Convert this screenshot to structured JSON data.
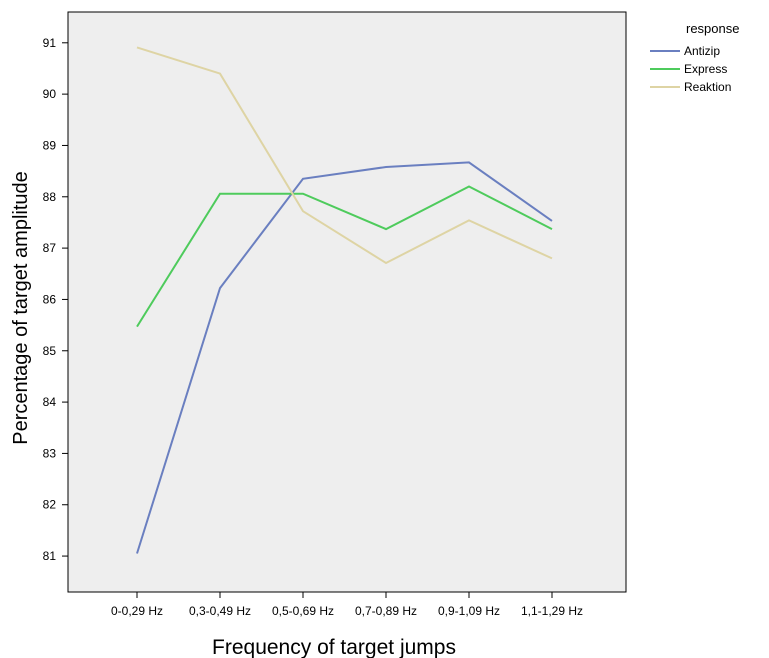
{
  "chart_data": {
    "type": "line",
    "title": "",
    "xlabel": "Frequency of target jumps",
    "ylabel": "Percentage of target amplitude",
    "categories": [
      "0-0,29 Hz",
      "0,3-0,49 Hz",
      "0,5-0,69 Hz",
      "0,7-0,89 Hz",
      "0,9-1,09 Hz",
      "1,1-1,29 Hz"
    ],
    "ylim": [
      80.3,
      91.6
    ],
    "yticks": [
      81,
      82,
      83,
      84,
      85,
      86,
      87,
      88,
      89,
      90,
      91
    ],
    "grid": false,
    "legend": {
      "title": "response",
      "placement": "right"
    },
    "series": [
      {
        "name": "Antizip",
        "color": "#6a7fc0",
        "values": [
          81.05,
          86.22,
          88.35,
          88.58,
          88.67,
          87.53
        ]
      },
      {
        "name": "Express",
        "color": "#4ecb5c",
        "values": [
          85.47,
          88.06,
          88.06,
          87.37,
          88.2,
          87.37
        ]
      },
      {
        "name": "Reaktion",
        "color": "#ded4a4",
        "values": [
          90.91,
          90.4,
          87.72,
          86.71,
          87.54,
          86.8
        ]
      }
    ],
    "colors": {
      "plot_background": "#eeeeee",
      "axis": "#000000",
      "text": "#000000"
    }
  }
}
